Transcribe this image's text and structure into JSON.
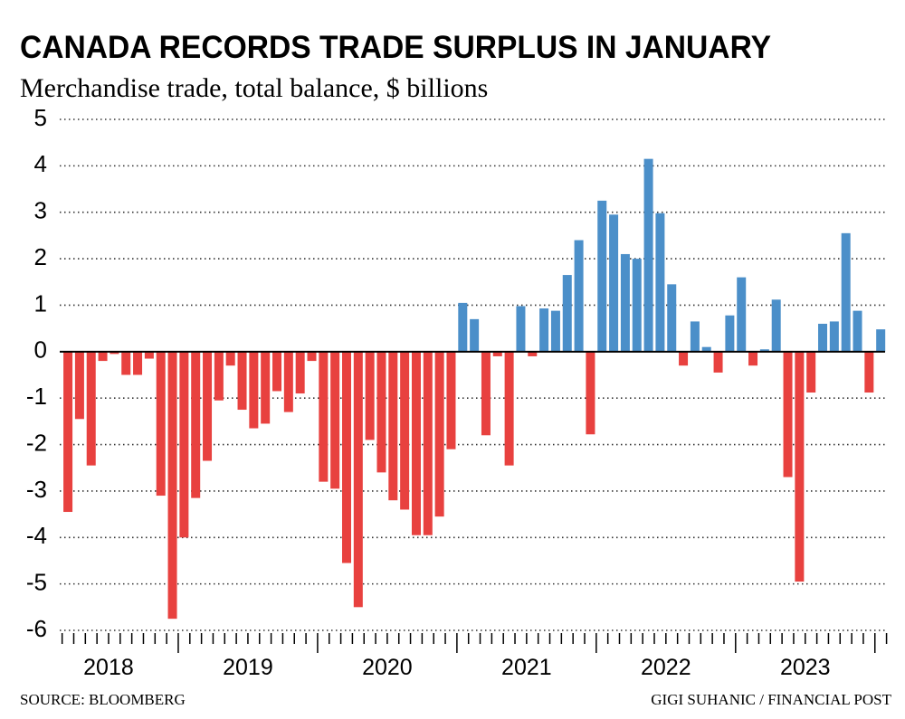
{
  "chart_data": {
    "type": "bar",
    "title": "CANADA RECORDS TRADE SURPLUS IN JANUARY",
    "subtitle": "Merchandise trade, total balance, $ billions",
    "source": "SOURCE:  BLOOMBERG",
    "credit": "GIGI SUHANIC / FINANCIAL POST",
    "years": [
      "2018",
      "2019",
      "2020",
      "2021",
      "2022",
      "2023"
    ],
    "categories": [
      null,
      null,
      null,
      null,
      null,
      null,
      null,
      null,
      null,
      null,
      null,
      null,
      null,
      null,
      null,
      null,
      null,
      null,
      null,
      null,
      null,
      null,
      null,
      null,
      null,
      null,
      null,
      null,
      null,
      null,
      null,
      null,
      null,
      null,
      null,
      null,
      null,
      null,
      null,
      null,
      null,
      null,
      null,
      null,
      null,
      null,
      null,
      null,
      null,
      null,
      null,
      null,
      null,
      null,
      null,
      null,
      null,
      null,
      null,
      null,
      null,
      null,
      null,
      null,
      null,
      null,
      null,
      null,
      null,
      null,
      null
    ],
    "values": [
      -3.45,
      -1.45,
      -2.45,
      -0.2,
      -0.05,
      -0.5,
      -0.5,
      -0.15,
      -3.1,
      -5.75,
      -4.0,
      -3.15,
      -2.35,
      -1.05,
      -0.3,
      -1.25,
      -1.65,
      -1.55,
      -0.85,
      -1.3,
      -0.9,
      -0.2,
      -2.8,
      -2.95,
      -4.55,
      -5.5,
      -1.9,
      -2.6,
      -3.2,
      -3.4,
      -3.95,
      -3.95,
      -3.55,
      -2.1,
      1.05,
      0.7,
      -1.8,
      -0.1,
      -2.45,
      0.98,
      -0.1,
      0.93,
      0.88,
      1.65,
      2.4,
      -1.78,
      3.25,
      2.95,
      2.1,
      2.0,
      4.15,
      2.98,
      1.45,
      -0.3,
      0.65,
      0.1,
      -0.45,
      0.78,
      1.6,
      -0.3,
      0.05,
      1.12,
      -2.7,
      -4.95,
      -0.88,
      0.6,
      0.65,
      2.55,
      0.88,
      -0.88,
      0.48
    ],
    "colors": {
      "positive": "#4b8fc9",
      "negative": "#e8413f"
    },
    "ylim": [
      -6,
      5
    ],
    "yticks": [
      -6,
      -5,
      -4,
      -3,
      -2,
      -1,
      0,
      1,
      2,
      3,
      4,
      5
    ],
    "grid": true
  }
}
